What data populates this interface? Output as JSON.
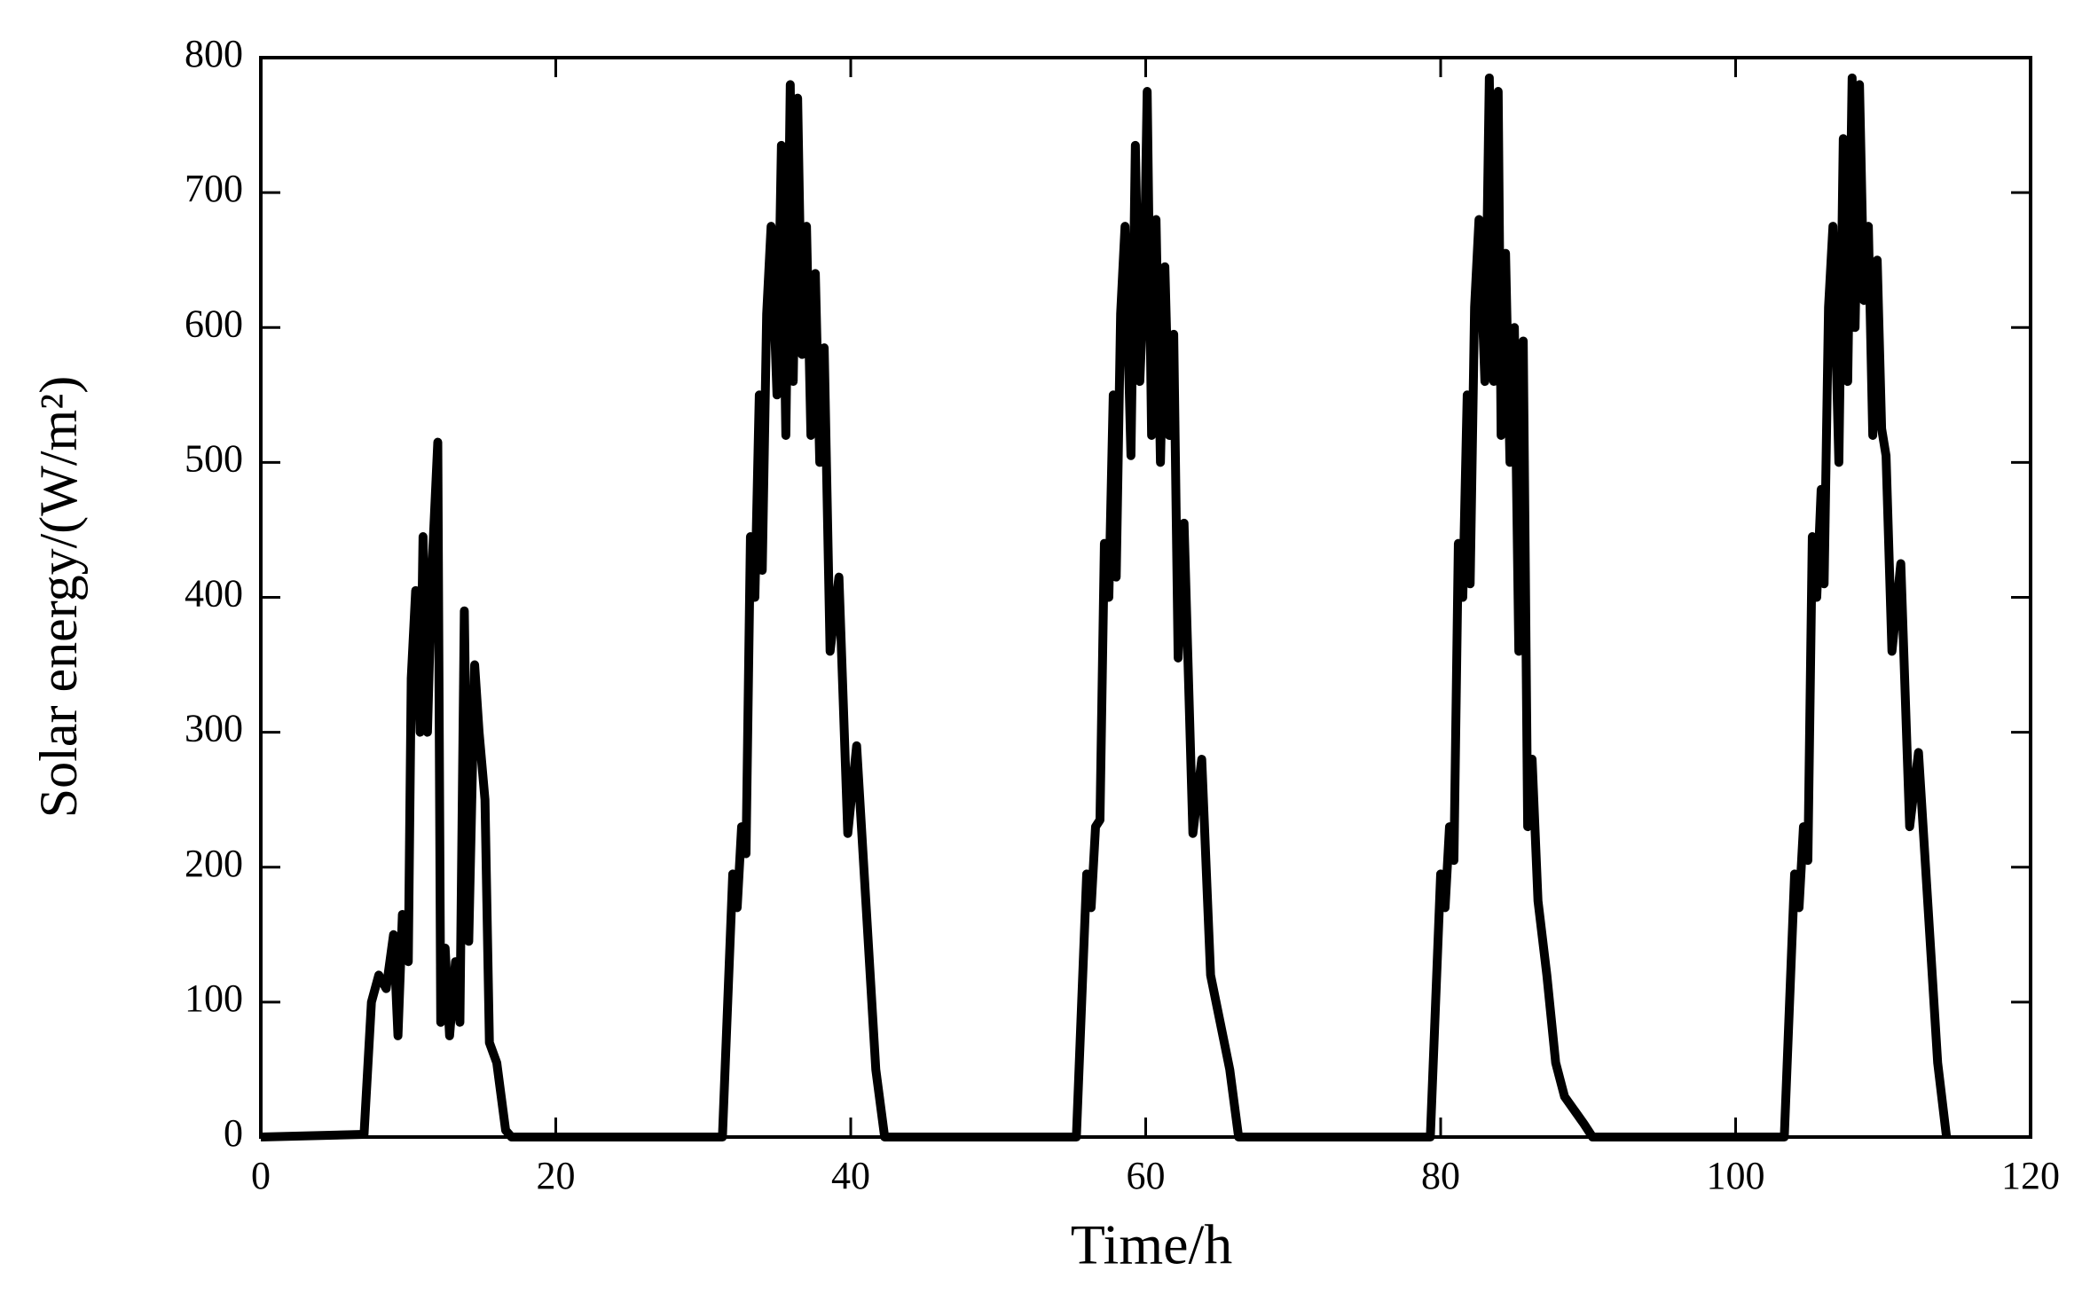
{
  "chart_data": {
    "type": "line",
    "x_label": "Time/h",
    "y_label": "Solar energy/(W/m²)",
    "color": "#000000",
    "x": [
      0,
      7,
      7.5,
      8,
      8.5,
      9,
      9.3,
      9.6,
      10,
      10.2,
      10.5,
      10.8,
      11,
      11.3,
      11.6,
      12,
      12.2,
      12.5,
      12.8,
      13.2,
      13.5,
      13.8,
      14.1,
      14.5,
      14.8,
      15.2,
      15.5,
      16,
      16.3,
      16.6,
      17,
      31.3,
      32,
      32.3,
      32.6,
      32.9,
      33.2,
      33.5,
      33.8,
      34,
      34.3,
      34.6,
      35,
      35.3,
      35.6,
      35.9,
      36.1,
      36.4,
      36.7,
      37,
      37.3,
      37.6,
      37.9,
      38.2,
      38.6,
      39.2,
      39.8,
      40.4,
      41.7,
      42.3,
      55.3,
      56,
      56.3,
      56.6,
      56.9,
      57.2,
      57.5,
      57.8,
      58,
      58.3,
      58.6,
      59,
      59.3,
      59.6,
      59.9,
      60.1,
      60.4,
      60.7,
      61,
      61.3,
      61.6,
      61.9,
      62.2,
      62.6,
      63.2,
      63.8,
      64.4,
      65.7,
      66.3,
      79.3,
      80,
      80.3,
      80.6,
      80.9,
      81.2,
      81.5,
      81.8,
      82,
      82.3,
      82.6,
      83,
      83.3,
      83.6,
      83.9,
      84.1,
      84.4,
      84.7,
      85,
      85.3,
      85.6,
      85.9,
      86.2,
      86.6,
      87.2,
      87.8,
      88.4,
      89.7,
      90.3,
      103.3,
      104,
      104.3,
      104.6,
      104.9,
      105.2,
      105.5,
      105.8,
      106,
      106.3,
      106.6,
      107,
      107.3,
      107.6,
      107.9,
      108.1,
      108.4,
      108.7,
      109,
      109.3,
      109.6,
      109.9,
      110.2,
      110.6,
      111.2,
      111.8,
      112.4,
      113.7,
      114.3
    ],
    "values": [
      0,
      2,
      100,
      120,
      110,
      150,
      75,
      165,
      130,
      340,
      405,
      300,
      445,
      300,
      420,
      515,
      85,
      140,
      75,
      130,
      85,
      390,
      145,
      350,
      300,
      250,
      70,
      55,
      30,
      5,
      0,
      0,
      195,
      170,
      230,
      210,
      445,
      400,
      550,
      420,
      610,
      675,
      550,
      735,
      520,
      780,
      560,
      770,
      580,
      675,
      520,
      640,
      500,
      585,
      360,
      415,
      225,
      290,
      50,
      0,
      0,
      195,
      170,
      230,
      235,
      440,
      400,
      550,
      415,
      610,
      675,
      505,
      735,
      560,
      640,
      775,
      520,
      680,
      500,
      645,
      520,
      595,
      355,
      455,
      225,
      280,
      120,
      50,
      0,
      0,
      195,
      170,
      230,
      205,
      440,
      400,
      550,
      410,
      615,
      680,
      560,
      785,
      560,
      775,
      520,
      655,
      500,
      600,
      360,
      590,
      230,
      280,
      175,
      120,
      55,
      30,
      10,
      0,
      0,
      195,
      170,
      230,
      205,
      445,
      400,
      480,
      410,
      615,
      675,
      500,
      740,
      560,
      785,
      600,
      780,
      620,
      675,
      520,
      650,
      525,
      505,
      360,
      425,
      230,
      285,
      55,
      0
    ],
    "xlim": [
      0,
      120
    ],
    "xticks": [
      0,
      20,
      40,
      60,
      80,
      100,
      120
    ],
    "ylim": [
      0,
      800
    ],
    "yticks": [
      0,
      100,
      200,
      300,
      400,
      500,
      600,
      700,
      800
    ]
  }
}
